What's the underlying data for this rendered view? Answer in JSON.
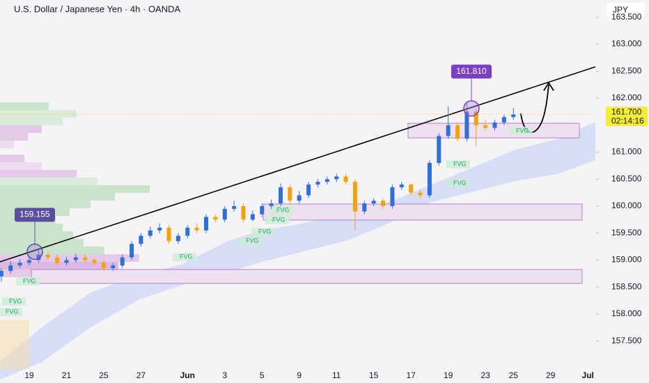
{
  "chart_data": {
    "type": "candlestick",
    "title": "U.S. Dollar / Japanese Yen · 4h · OANDA",
    "currency_button": "JPY",
    "categories": [
      null,
      null,
      null,
      "19",
      null,
      null,
      null,
      "21",
      null,
      null,
      null,
      "25",
      null,
      null,
      null,
      "27",
      null,
      null,
      null,
      null,
      "Jun",
      null,
      null,
      null,
      "3",
      null,
      null,
      null,
      "5",
      null,
      null,
      null,
      "9",
      null,
      null,
      null,
      "11",
      null,
      null,
      null,
      "15",
      null,
      null,
      null,
      "17",
      null,
      null,
      null,
      "19",
      null,
      null,
      null,
      "23",
      null,
      null,
      "25",
      null,
      null,
      null,
      "29",
      null,
      null,
      null,
      "Jul"
    ],
    "open": [
      158.7,
      158.8,
      158.9,
      158.95,
      159.0,
      159.1,
      159.05,
      158.95,
      159.0,
      159.05,
      159.0,
      158.95,
      158.85,
      158.9,
      159.05,
      159.3,
      159.45,
      159.55,
      159.6,
      159.35,
      159.45,
      159.6,
      159.55,
      159.8,
      159.75,
      159.95,
      160.0,
      159.75,
      159.85,
      160.0,
      160.05,
      160.35,
      160.1,
      160.2,
      160.4,
      160.45,
      160.5,
      160.55,
      160.45,
      159.9,
      160.05,
      160.1,
      160.0,
      160.35,
      160.4,
      160.25,
      160.2,
      160.8,
      161.3,
      161.5,
      161.25,
      161.75,
      161.5,
      161.45,
      161.55,
      161.65,
      null,
      null,
      null,
      null,
      null,
      null,
      null,
      null
    ],
    "high": [
      158.85,
      158.98,
      159.02,
      159.08,
      159.2,
      159.15,
      159.1,
      159.06,
      159.12,
      159.1,
      159.05,
      159.0,
      158.95,
      159.1,
      159.35,
      159.5,
      159.62,
      159.68,
      159.65,
      159.5,
      159.65,
      159.68,
      159.85,
      159.85,
      160.0,
      160.1,
      160.05,
      159.92,
      160.05,
      160.12,
      160.42,
      160.4,
      160.28,
      160.45,
      160.5,
      160.55,
      160.6,
      160.6,
      160.5,
      160.1,
      160.15,
      160.15,
      160.4,
      160.45,
      160.42,
      160.3,
      160.85,
      161.35,
      161.85,
      161.55,
      161.9,
      161.8,
      161.6,
      161.6,
      161.7,
      161.82,
      null,
      null,
      null,
      null,
      null,
      null,
      null,
      null
    ],
    "low": [
      158.6,
      158.75,
      158.85,
      158.9,
      158.95,
      159.0,
      158.9,
      158.9,
      158.95,
      158.95,
      158.9,
      158.8,
      158.8,
      158.85,
      159.0,
      159.25,
      159.4,
      159.5,
      159.3,
      159.3,
      159.4,
      159.5,
      159.5,
      159.7,
      159.7,
      159.9,
      159.7,
      159.72,
      159.8,
      159.95,
      160.0,
      160.05,
      160.05,
      160.15,
      160.35,
      160.4,
      160.45,
      160.4,
      159.55,
      159.85,
      160.0,
      159.95,
      159.95,
      160.3,
      160.2,
      160.15,
      160.15,
      160.75,
      161.25,
      161.2,
      161.2,
      161.1,
      161.4,
      161.4,
      161.5,
      161.6,
      null,
      null,
      null,
      null,
      null,
      null,
      null,
      null
    ],
    "close": [
      158.8,
      158.9,
      158.95,
      159.0,
      159.1,
      159.05,
      158.95,
      159.0,
      159.05,
      159.0,
      158.95,
      158.85,
      158.9,
      159.05,
      159.3,
      159.45,
      159.55,
      159.6,
      159.35,
      159.45,
      159.6,
      159.55,
      159.8,
      159.75,
      159.95,
      160.0,
      159.75,
      159.85,
      160.0,
      160.05,
      160.35,
      160.1,
      160.2,
      160.4,
      160.45,
      160.5,
      160.55,
      160.45,
      159.9,
      160.05,
      160.1,
      160.0,
      160.35,
      160.4,
      160.25,
      160.2,
      160.8,
      161.3,
      161.5,
      161.25,
      161.75,
      161.5,
      161.45,
      161.55,
      161.65,
      161.7,
      null,
      null,
      null,
      null,
      null,
      null,
      null,
      null
    ],
    "up_color": "#2f6fd6",
    "down_color": "#f0a30a",
    "ylim": [
      156.98,
      163.82
    ],
    "yticks": [
      {
        "value": 157.5,
        "label": "157.500"
      },
      {
        "value": 158,
        "label": "158.000"
      },
      {
        "value": 158.5,
        "label": "158.500"
      },
      {
        "value": 159,
        "label": "159.000"
      },
      {
        "value": 159.5,
        "label": "159.500"
      },
      {
        "value": 160,
        "label": "160.000"
      },
      {
        "value": 160.5,
        "label": "160.500"
      },
      {
        "value": 161,
        "label": "161.000"
      },
      {
        "value": 162,
        "label": "162.000"
      },
      {
        "value": 162.5,
        "label": "162.500"
      },
      {
        "value": 163,
        "label": "163.000"
      },
      {
        "value": 163.5,
        "label": "163.500"
      }
    ],
    "last_price": {
      "value": 161.7,
      "label": "161.700"
    },
    "countdown": "02:14:16",
    "annotations": [
      {
        "value": 159.155,
        "label": "159.155"
      },
      {
        "value": 161.81,
        "label": "161.810"
      }
    ],
    "fvg_labels": [
      "FVG",
      "FVG",
      "FVG",
      "FVG",
      "FVG",
      "FVG",
      "FVG",
      "FVG",
      "FVG",
      "FVG",
      "FVG"
    ]
  }
}
